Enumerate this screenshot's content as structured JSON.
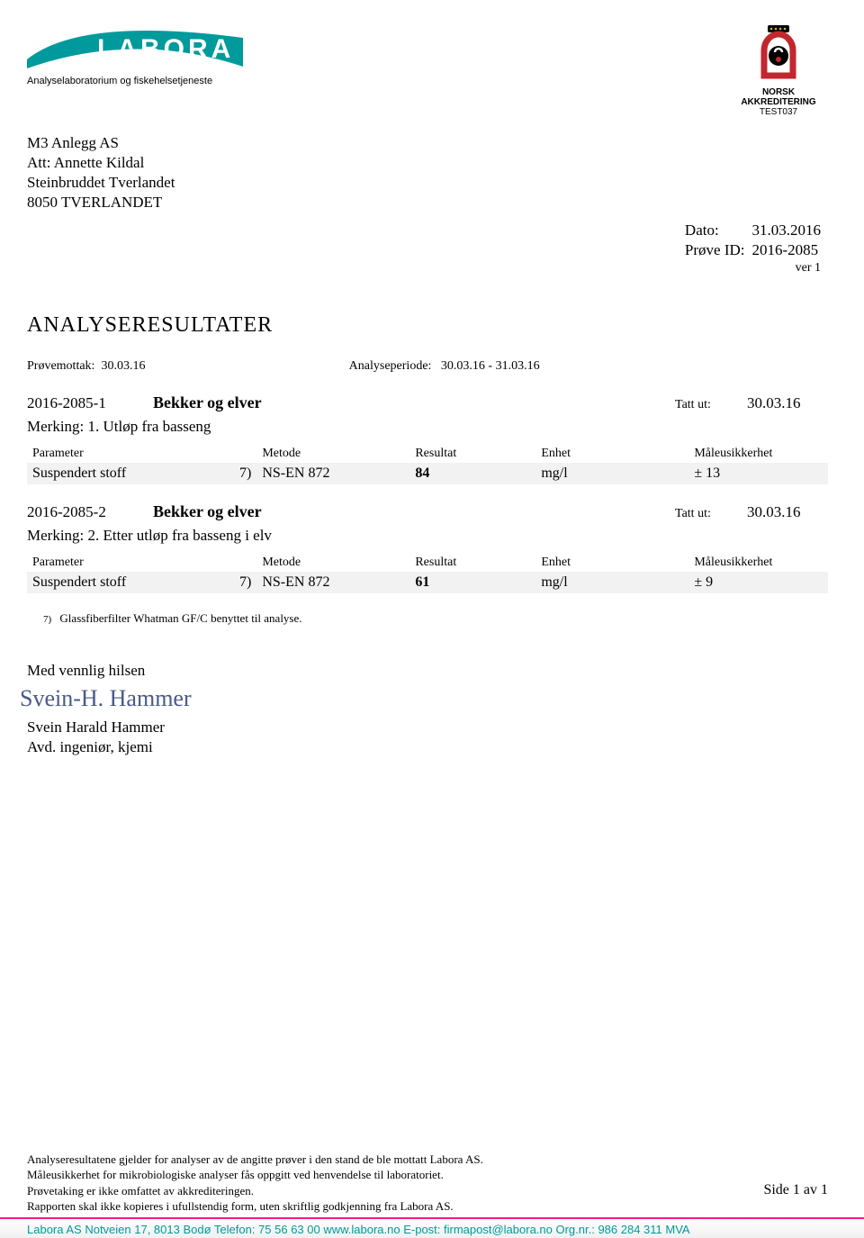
{
  "colors": {
    "teal": "#009a9c",
    "accred_red": "#c1272d",
    "accred_black": "#000000",
    "pink_rule": "#ef1a84",
    "row_bg": "#f2f2f2"
  },
  "header": {
    "company_name": "LABORA",
    "company_sub": "Analyselaboratorium og fiskehelsetjeneste",
    "accred_line1": "NORSK",
    "accred_line2": "AKKREDITERING",
    "accred_line3": "TEST037"
  },
  "recipient": {
    "line1": "M3 Anlegg AS",
    "line2": "Att: Annette Kildal",
    "line3": "Steinbruddet Tverlandet",
    "line4": "8050 TVERLANDET"
  },
  "meta": {
    "dato_label": "Dato:",
    "dato_value": "31.03.2016",
    "prove_label": "Prøve ID:",
    "prove_value": "2016-2085",
    "ver": "ver 1"
  },
  "title": "ANALYSERESULTATER",
  "periode": {
    "mottak_label": "Prøvemottak:",
    "mottak_value": "30.03.16",
    "periode_label": "Analyseperiode:",
    "periode_value": "30.03.16  -  31.03.16"
  },
  "table_headers": {
    "parameter": "Parameter",
    "metode": "Metode",
    "resultat": "Resultat",
    "enhet": "Enhet",
    "usikkerhet": "Måleusikkerhet"
  },
  "samples": [
    {
      "id": "2016-2085-1",
      "name": "Bekker og elver",
      "tattut_label": "Tatt ut:",
      "tattut_value": "30.03.16",
      "merk": "Merking: 1. Utløp fra basseng",
      "rows": [
        {
          "parameter": "Suspendert stoff",
          "fn": "7)",
          "metode": "NS-EN 872",
          "resultat": "84",
          "enhet": "mg/l",
          "usikkerhet": "± 13"
        }
      ]
    },
    {
      "id": "2016-2085-2",
      "name": "Bekker og elver",
      "tattut_label": "Tatt ut:",
      "tattut_value": "30.03.16",
      "merk": "Merking: 2. Etter utløp fra basseng i elv",
      "rows": [
        {
          "parameter": "Suspendert stoff",
          "fn": "7)",
          "metode": "NS-EN 872",
          "resultat": "61",
          "enhet": "mg/l",
          "usikkerhet": "± 9"
        }
      ]
    }
  ],
  "footnote": {
    "num": "7)",
    "text": "Glassfiberfilter Whatman GF/C benyttet til analyse."
  },
  "signoff": {
    "greeting": "Med vennlig hilsen",
    "signature": "Svein-H. Hammer",
    "name": "Svein Harald Hammer",
    "title": "Avd. ingeniør, kjemi"
  },
  "footer": {
    "l1": "Analyseresultatene gjelder for analyser av de angitte prøver i den stand de ble mottatt Labora AS.",
    "l2": "Måleusikkerhet for mikrobiologiske analyser fås oppgitt ved henvendelse til laboratoriet.",
    "l3": "Prøvetaking er ikke omfattet av akkrediteringen.",
    "l4": "Rapporten skal ikke kopieres i ufullstendig form, uten skriftlig godkjenning fra Labora AS.",
    "page": "Side 1 av 1"
  },
  "contact": "Labora AS  Notveien 17, 8013 Bodø  Telefon: 75 56 63 00  www.labora.no  E-post: firmapost@labora.no  Org.nr.: 986 284 311 MVA"
}
